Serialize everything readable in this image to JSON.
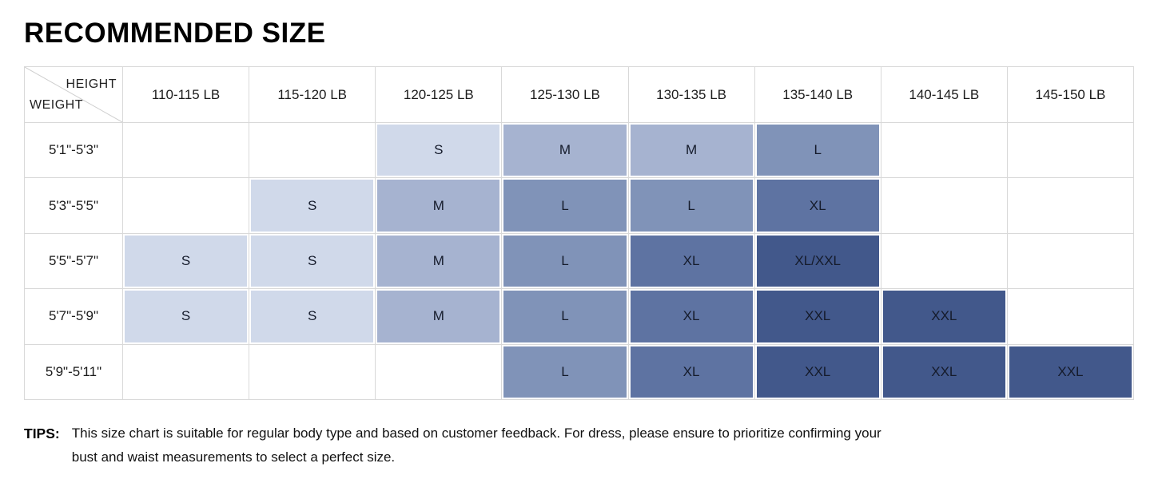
{
  "title": "RECOMMENDED SIZE",
  "table": {
    "corner": {
      "top": "HEIGHT",
      "bottom": "WEIGHT"
    },
    "weight_headers": [
      "110-115 LB",
      "115-120 LB",
      "120-125 LB",
      "125-130 LB",
      "130-135 LB",
      "135-140 LB",
      "140-145 LB",
      "145-150 LB"
    ],
    "rows": [
      {
        "height": "5'1\"-5'3\"",
        "cells": [
          "",
          "",
          "S",
          "M",
          "M",
          "L",
          "",
          ""
        ]
      },
      {
        "height": "5'3\"-5'5\"",
        "cells": [
          "",
          "S",
          "M",
          "L",
          "L",
          "XL",
          "",
          ""
        ]
      },
      {
        "height": "5'5\"-5'7\"",
        "cells": [
          "S",
          "S",
          "M",
          "L",
          "XL",
          "XL/XXL",
          "",
          ""
        ]
      },
      {
        "height": "5'7\"-5'9\"",
        "cells": [
          "S",
          "S",
          "M",
          "L",
          "XL",
          "XXL",
          "XXL",
          ""
        ]
      },
      {
        "height": "5'9\"-5'11\"",
        "cells": [
          "",
          "",
          "",
          "L",
          "XL",
          "XXL",
          "XXL",
          "XXL"
        ]
      }
    ],
    "size_colors": {
      "S": "#d0d9ea",
      "M": "#a6b3d0",
      "L": "#8093b8",
      "XL": "#5e73a2",
      "XXL": "#42588b",
      "XL/XXL": "#42588b"
    },
    "grid_color": "#d9d9d9"
  },
  "tips": {
    "label": "TIPS:",
    "text": "This size chart is suitable for regular body type and based on customer feedback. For dress, please ensure to prioritize confirming your bust and waist measurements to select a perfect size."
  }
}
